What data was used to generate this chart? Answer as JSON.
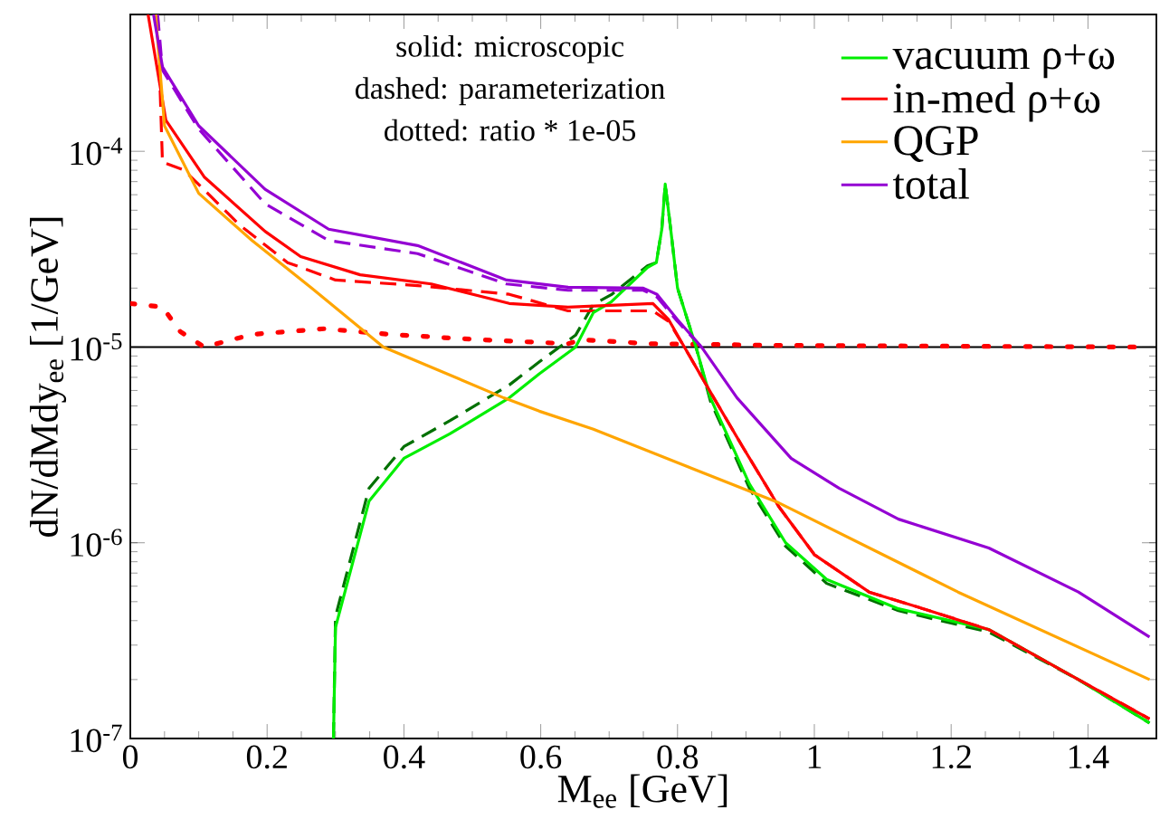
{
  "chart_data": {
    "type": "line",
    "xlabel": "M$_{ee}$ [GeV]",
    "ylabel": "dN/dMdy$_{ee}$ [1/GeV]",
    "annotations": [
      "solid: microscopic",
      "dashed: parameterization",
      "dotted: ratio * 1e-05"
    ],
    "xlim": [
      0,
      1.5
    ],
    "ylim": [
      1e-07,
      0.0005
    ],
    "log": "y",
    "xticks": [
      0,
      0.2,
      0.4,
      0.6,
      0.8,
      1,
      1.2,
      1.4
    ],
    "yticks": [
      {
        "value": 1e-07,
        "label": "10$^{-7}$"
      },
      {
        "value": 1e-06,
        "label": "10$^{-6}$"
      },
      {
        "value": 1e-05,
        "label": "10$^{-5}$"
      },
      {
        "value": 0.0001,
        "label": "10$^{-4}$"
      }
    ],
    "legend": "top right",
    "ref_lines": [
      {
        "axis": "y",
        "value": 1e-05,
        "color": "#000000"
      }
    ],
    "series": [
      {
        "name": "vacuum ρ+ω",
        "color": "#00ee00",
        "line_style": "solid",
        "x": [
          0.297,
          0.3,
          0.349,
          0.4,
          0.467,
          0.554,
          0.598,
          0.651,
          0.677,
          0.703,
          0.756,
          0.769,
          0.777,
          0.782,
          0.79,
          0.8,
          0.827,
          0.848,
          0.905,
          0.958,
          1.018,
          1.123,
          1.255,
          1.386,
          1.49
        ],
        "values": [
          1e-07,
          3.7e-07,
          1.63e-06,
          2.7e-06,
          3.6e-06,
          5.5e-06,
          7.3e-06,
          1e-05,
          1.5e-05,
          1.7e-05,
          2.55e-05,
          2.7e-05,
          4e-05,
          6.8e-05,
          4e-05,
          2e-05,
          1e-05,
          5.5e-06,
          2e-06,
          1e-06,
          6.5e-07,
          4.6e-07,
          3.6e-07,
          2e-07,
          1.2e-07
        ]
      },
      {
        "color": "#007000",
        "line_style": "dashed",
        "x": [
          0.297,
          0.3,
          0.349,
          0.4,
          0.467,
          0.554,
          0.598,
          0.651,
          0.677,
          0.703,
          0.756,
          0.769,
          0.777,
          0.782,
          0.79,
          0.8,
          0.827,
          0.848,
          0.905,
          0.958,
          1.018,
          1.123,
          1.255,
          1.386,
          1.49
        ],
        "values": [
          1e-07,
          4.2e-07,
          1.9e-06,
          3.1e-06,
          4.2e-06,
          6.4e-06,
          8.4e-06,
          1.15e-05,
          1.65e-05,
          1.85e-05,
          2.6e-05,
          2.7e-05,
          4e-05,
          6.8e-05,
          4e-05,
          2e-05,
          1e-05,
          5.3e-06,
          1.9e-06,
          9.6e-07,
          6.2e-07,
          4.5e-07,
          3.5e-07,
          2e-07,
          1.2e-07
        ]
      },
      {
        "name": "in-med ρ+ω",
        "color": "#ff0000",
        "line_style": "solid",
        "x": [
          0.026,
          0.052,
          0.108,
          0.197,
          0.249,
          0.336,
          0.44,
          0.554,
          0.64,
          0.764,
          0.787,
          0.81,
          0.853,
          0.895,
          0.948,
          1.0,
          1.08,
          1.168,
          1.255,
          1.386,
          1.49
        ],
        "values": [
          0.0005,
          0.000144,
          7.4e-05,
          3.9e-05,
          2.9e-05,
          2.34e-05,
          2.1e-05,
          1.67e-05,
          1.6e-05,
          1.67e-05,
          1.38e-05,
          1e-05,
          5.5e-06,
          3.1e-06,
          1.53e-06,
          8.7e-07,
          5.6e-07,
          4.5e-07,
          3.6e-07,
          2e-07,
          1.26e-07
        ]
      },
      {
        "color": "#ff0000",
        "line_style": "dashed",
        "x": [
          0.04,
          0.047,
          0.079,
          0.16,
          0.23,
          0.3,
          0.42,
          0.554,
          0.64,
          0.764,
          0.787,
          0.81,
          0.853,
          0.895,
          0.948,
          1.0,
          1.08,
          1.168,
          1.255,
          1.386,
          1.49
        ],
        "values": [
          0.0005,
          8.8e-05,
          8e-05,
          4.2e-05,
          2.7e-05,
          2.2e-05,
          2.06e-05,
          1.86e-05,
          1.53e-05,
          1.53e-05,
          1.35e-05,
          1e-05,
          5.5e-06,
          3.1e-06,
          1.53e-06,
          8.7e-07,
          5.6e-07,
          4.5e-07,
          3.6e-07,
          2e-07,
          1.26e-07
        ]
      },
      {
        "name": "QGP",
        "color": "#ffa500",
        "line_style": "solid",
        "x": [
          0.037,
          0.05,
          0.1,
          0.178,
          0.265,
          0.37,
          0.546,
          0.598,
          0.677,
          0.948,
          1.21,
          1.49
        ],
        "values": [
          0.0005,
          0.000135,
          6.1e-05,
          3.5e-05,
          2e-05,
          1e-05,
          5.5e-06,
          4.7e-06,
          3.8e-06,
          1.6e-06,
          5.6e-07,
          2e-07
        ]
      },
      {
        "name": "total",
        "color": "#9400d3",
        "line_style": "solid",
        "x": [
          0.034,
          0.047,
          0.1,
          0.197,
          0.29,
          0.42,
          0.55,
          0.64,
          0.75,
          0.77,
          0.8,
          0.835,
          0.887,
          0.966,
          1.036,
          1.123,
          1.255,
          1.386,
          1.49
        ],
        "values": [
          0.0005,
          0.00027,
          0.000135,
          6.4e-05,
          4e-05,
          3.3e-05,
          2.2e-05,
          2.02e-05,
          2e-05,
          1.86e-05,
          1.38e-05,
          1e-05,
          5.5e-06,
          2.7e-06,
          1.9e-06,
          1.32e-06,
          9.4e-07,
          5.6e-07,
          3.3e-07
        ]
      },
      {
        "color": "#9400d3",
        "line_style": "dashed",
        "x": [
          0.04,
          0.047,
          0.1,
          0.197,
          0.29,
          0.42,
          0.55,
          0.64,
          0.75,
          0.77,
          0.8,
          0.835
        ],
        "values": [
          0.0005,
          0.00026,
          0.00013,
          5.4e-05,
          3.5e-05,
          3e-05,
          2.1e-05,
          1.95e-05,
          1.95e-05,
          1.8e-05,
          1.35e-05,
          1e-05
        ]
      },
      {
        "color": "#ff0000",
        "line_style": "dotted",
        "x": [
          0,
          0.047,
          0.073,
          0.108,
          0.178,
          0.283,
          0.38,
          0.51,
          0.64,
          0.66,
          0.76,
          0.95,
          1.48
        ],
        "values": [
          1.67e-05,
          1.6e-05,
          1.2e-05,
          1e-05,
          1.16e-05,
          1.24e-05,
          1.16e-05,
          1.09e-05,
          1.04e-05,
          1.09e-05,
          1.04e-05,
          1.02e-05,
          1e-05
        ]
      }
    ]
  }
}
